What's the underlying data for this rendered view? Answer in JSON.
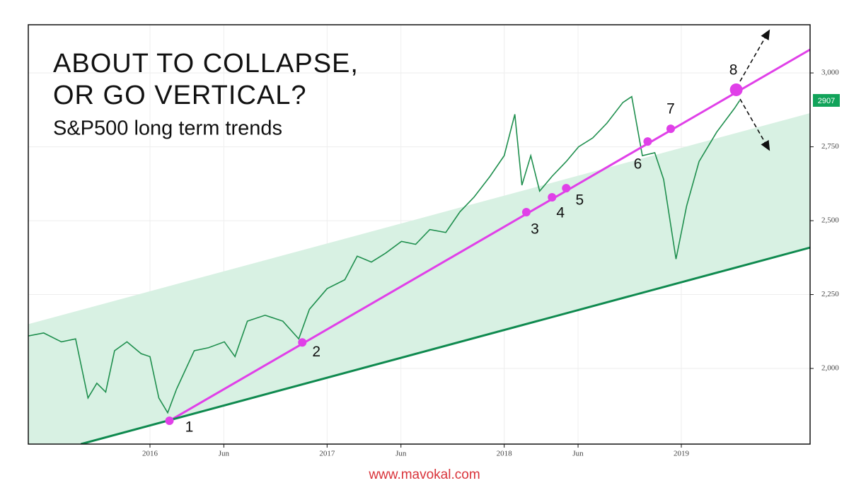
{
  "chart_data": {
    "type": "line",
    "title_lines": [
      "ABOUT TO COLLAPSE,",
      "OR GO VERTICAL?"
    ],
    "subtitle": "S&P500 long term trends",
    "source": "www.mavokal.com",
    "xlim": [
      2015.313,
      2019.727
    ],
    "ylim": [
      1744,
      3163
    ],
    "xticks": [
      2016,
      {
        "value": 2016.417,
        "label": "Jun"
      },
      2017,
      {
        "value": 2017.417,
        "label": "Jun"
      },
      2018,
      {
        "value": 2018.417,
        "label": "Jun"
      },
      2019
    ],
    "yticks": [
      {
        "value": 2000,
        "label": "2,000"
      },
      {
        "value": 2250,
        "label": "2,250"
      },
      {
        "value": 2500,
        "label": "2,500"
      },
      {
        "value": 2750,
        "label": "2,750"
      },
      {
        "value": 3000,
        "label": "3,000"
      }
    ],
    "grid": true,
    "last_price": 2907,
    "last_price_color": "#11a35a",
    "series": [
      {
        "color": "#1f8f4e",
        "x": [
          2015.313,
          2015.4,
          2015.5,
          2015.58,
          2015.65,
          2015.7,
          2015.75,
          2015.8,
          2015.87,
          2015.95,
          2016.0,
          2016.05,
          2016.1,
          2016.15,
          2016.25,
          2016.33,
          2016.42,
          2016.48,
          2016.55,
          2016.65,
          2016.75,
          2016.84,
          2016.9,
          2017.0,
          2017.1,
          2017.17,
          2017.25,
          2017.33,
          2017.42,
          2017.5,
          2017.58,
          2017.67,
          2017.75,
          2017.83,
          2017.92,
          2018.0,
          2018.06,
          2018.1,
          2018.15,
          2018.2,
          2018.27,
          2018.35,
          2018.42,
          2018.5,
          2018.58,
          2018.67,
          2018.72,
          2018.78,
          2018.85,
          2018.9,
          2018.97,
          2019.03,
          2019.1,
          2019.2,
          2019.3,
          2019.33
        ],
        "values": [
          2110,
          2120,
          2090,
          2100,
          1900,
          1950,
          1920,
          2060,
          2090,
          2050,
          2040,
          1900,
          1850,
          1930,
          2060,
          2070,
          2090,
          2040,
          2160,
          2180,
          2160,
          2100,
          2200,
          2270,
          2300,
          2380,
          2360,
          2390,
          2430,
          2420,
          2470,
          2460,
          2530,
          2580,
          2650,
          2720,
          2860,
          2620,
          2720,
          2600,
          2650,
          2700,
          2750,
          2780,
          2830,
          2900,
          2920,
          2720,
          2730,
          2640,
          2370,
          2550,
          2700,
          2800,
          2880,
          2907
        ]
      }
    ],
    "channel": {
      "color": "#d8f1e3",
      "x": [
        2015.313,
        2019.727
      ],
      "upper": [
        2150,
        2864
      ],
      "lower": [
        1696,
        2409
      ]
    },
    "trendlines": [
      {
        "color": "#e040e8",
        "x": [
          2016.11,
          2019.727
        ],
        "values": [
          1823,
          3079
        ]
      },
      {
        "color": "#0f8a4f",
        "x": [
          2015.61,
          2019.727
        ],
        "values": [
          1744,
          2409
        ]
      }
    ],
    "point_color": "#e040e8",
    "points": [
      {
        "label": "1",
        "x": 2016.11,
        "y": 1823
      },
      {
        "label": "2",
        "x": 2016.86,
        "y": 2088
      },
      {
        "label": "3",
        "x": 2018.125,
        "y": 2529
      },
      {
        "label": "4",
        "x": 2018.27,
        "y": 2579
      },
      {
        "label": "5",
        "x": 2018.35,
        "y": 2610
      },
      {
        "label": "6",
        "x": 2018.81,
        "y": 2768
      },
      {
        "label": "7",
        "x": 2018.94,
        "y": 2811
      },
      {
        "label": "8",
        "x": 2019.31,
        "y": 2943
      }
    ]
  }
}
